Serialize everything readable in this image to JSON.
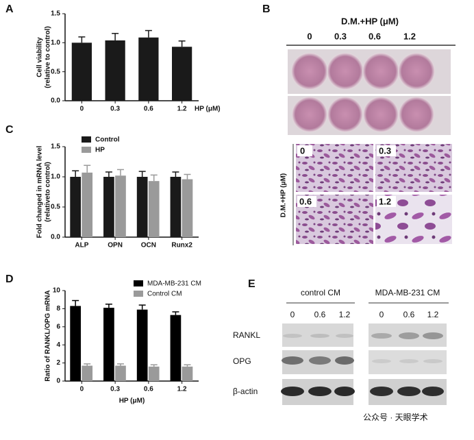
{
  "panel_labels": [
    "A",
    "B",
    "C",
    "D",
    "E"
  ],
  "chart_data": [
    {
      "type": "bar",
      "ylabel": [
        "Cell viability",
        "(relative to control)"
      ],
      "xlabel": "HP (μM)",
      "categories": [
        "0",
        "0.3",
        "0.6",
        "1.2"
      ],
      "series": [
        {
          "color": "#1a1a1a",
          "values": [
            1.0,
            1.04,
            1.09,
            0.93
          ],
          "errors": [
            0.1,
            0.12,
            0.12,
            0.1
          ]
        }
      ],
      "ylim": [
        0,
        1.5
      ],
      "yticks": [
        {
          "value": 0,
          "label": "0.0"
        },
        {
          "value": 0.5,
          "label": "0.5"
        },
        {
          "value": 1,
          "label": "1.0"
        },
        {
          "value": 1.5,
          "label": "1.5"
        }
      ]
    },
    {
      "type": "bar",
      "ylabel": [
        "Fold changed in mRNA level",
        "(relativeto control)"
      ],
      "categories": [
        "ALP",
        "OPN",
        "OCN",
        "Runx2"
      ],
      "legend": "upper left",
      "series": [
        {
          "name": "Control",
          "color": "#1a1a1a",
          "values": [
            1.0,
            1.0,
            1.0,
            1.0
          ],
          "errors": [
            0.1,
            0.08,
            0.09,
            0.08
          ]
        },
        {
          "name": "HP",
          "color": "#9a9a9a",
          "values": [
            1.07,
            1.02,
            0.93,
            0.96
          ],
          "errors": [
            0.12,
            0.1,
            0.1,
            0.08
          ]
        }
      ],
      "ylim": [
        0,
        1.5
      ],
      "yticks": [
        {
          "value": 0,
          "label": "0.0"
        },
        {
          "value": 0.5,
          "label": "0.5"
        },
        {
          "value": 1,
          "label": "1.0"
        },
        {
          "value": 1.5,
          "label": "1.5"
        }
      ]
    },
    {
      "type": "bar",
      "ylabel": [
        "Ratio of RANKL/OPG mRNA"
      ],
      "xlabel": "HP (μM)",
      "categories": [
        "0",
        "0.3",
        "0.6",
        "1.2"
      ],
      "legend": "upper right",
      "series": [
        {
          "name": "MDA-MB-231 CM",
          "color": "#000000",
          "values": [
            8.3,
            8.1,
            7.9,
            7.3
          ],
          "errors": [
            0.6,
            0.4,
            0.5,
            0.35
          ]
        },
        {
          "name": "Control CM",
          "color": "#9a9a9a",
          "values": [
            1.7,
            1.7,
            1.6,
            1.6
          ],
          "errors": [
            0.2,
            0.2,
            0.2,
            0.2
          ]
        }
      ],
      "ylim": [
        0,
        10
      ],
      "yticks": [
        0,
        2,
        4,
        6,
        8,
        10
      ]
    }
  ],
  "panel_b": {
    "title": "D.M.+HP (μM)",
    "columns": [
      "0",
      "0.3",
      "0.6",
      "1.2"
    ],
    "side_label": "D.M.+HP (μM)",
    "micro_labels": [
      "0",
      "0.3",
      "0.6",
      "1.2"
    ]
  },
  "panel_e": {
    "groups": [
      "control CM",
      "MDA-MB-231 CM"
    ],
    "lanes": [
      "0",
      "0.6",
      "1.2",
      "0",
      "0.6",
      "1.2"
    ],
    "rows": [
      "RANKL",
      "OPG",
      "β-actin"
    ]
  },
  "watermark": "公众号 · 天眼学术"
}
